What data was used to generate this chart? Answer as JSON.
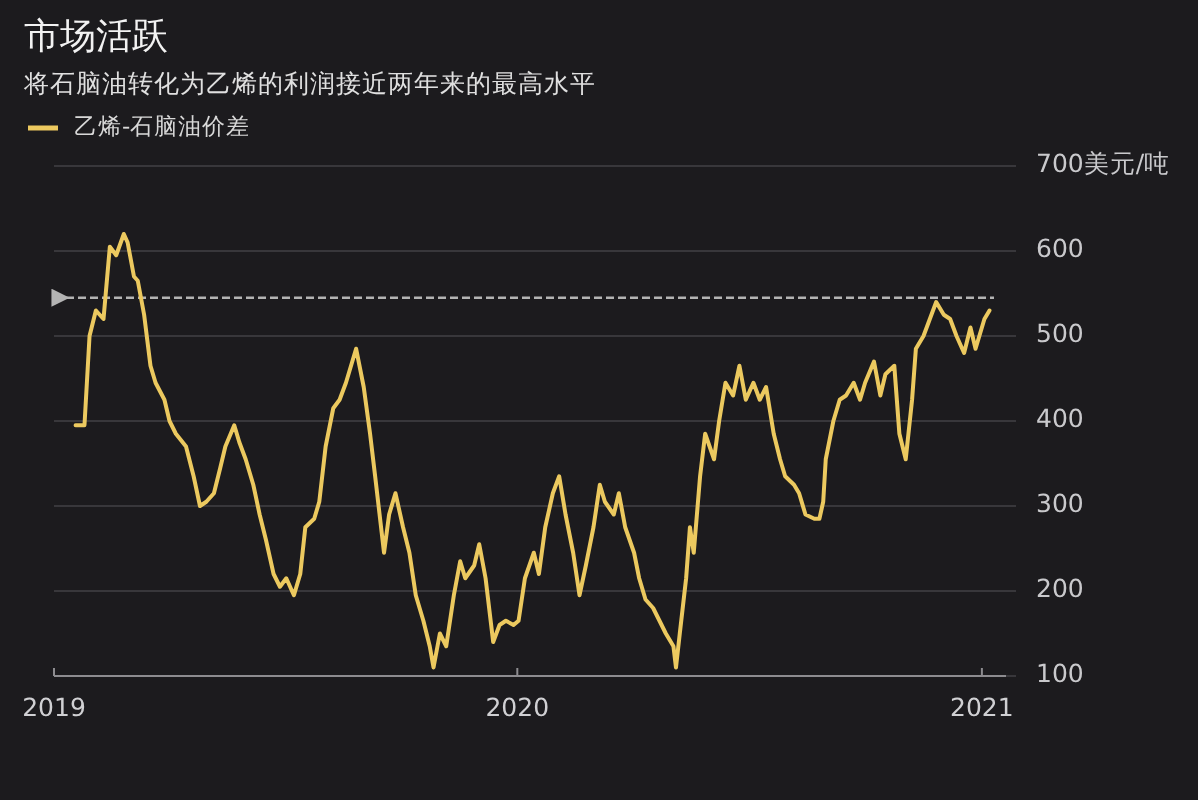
{
  "chart_data": {
    "type": "line",
    "title": "市场活跃",
    "subtitle": "将石脑油转化为乙烯的利润接近两年来的最高水平",
    "x": [
      "2019-01-18",
      "2019-01-25",
      "2019-01-29",
      "2019-02-03",
      "2019-02-09",
      "2019-02-14",
      "2019-02-19",
      "2019-02-25",
      "2019-02-28",
      "2019-03-05",
      "2019-03-08",
      "2019-03-13",
      "2019-03-18",
      "2019-03-22",
      "2019-03-29",
      "2019-04-02",
      "2019-04-07",
      "2019-04-15",
      "2019-04-21",
      "2019-04-26",
      "2019-05-01",
      "2019-05-07",
      "2019-05-12",
      "2019-05-16",
      "2019-05-23",
      "2019-05-27",
      "2019-06-01",
      "2019-06-07",
      "2019-06-12",
      "2019-06-17",
      "2019-06-23",
      "2019-06-28",
      "2019-07-03",
      "2019-07-09",
      "2019-07-14",
      "2019-07-18",
      "2019-07-25",
      "2019-07-29",
      "2019-08-03",
      "2019-08-09",
      "2019-08-14",
      "2019-08-19",
      "2019-08-27",
      "2019-09-02",
      "2019-09-07",
      "2019-09-11",
      "2019-09-18",
      "2019-09-22",
      "2019-09-27",
      "2019-10-03",
      "2019-10-08",
      "2019-10-13",
      "2019-10-19",
      "2019-10-24",
      "2019-10-27",
      "2019-11-01",
      "2019-11-06",
      "2019-11-12",
      "2019-11-17",
      "2019-11-21",
      "2019-11-28",
      "2019-12-02",
      "2019-12-07",
      "2019-12-13",
      "2019-12-18",
      "2019-12-23",
      "2019-12-29",
      "2020-01-02",
      "2020-01-07",
      "2020-01-14",
      "2020-01-18",
      "2020-01-23",
      "2020-01-29",
      "2020-02-03",
      "2020-02-08",
      "2020-02-14",
      "2020-02-19",
      "2020-02-24",
      "2020-03-01",
      "2020-03-06",
      "2020-03-10",
      "2020-03-17",
      "2020-03-21",
      "2020-03-26",
      "2020-04-02",
      "2020-04-06",
      "2020-04-11",
      "2020-04-17",
      "2020-04-22",
      "2020-04-27",
      "2020-05-03",
      "2020-05-05",
      "2020-05-08",
      "2020-05-13",
      "2020-05-16",
      "2020-05-19",
      "2020-05-24",
      "2020-05-28",
      "2020-06-04",
      "2020-06-08",
      "2020-06-13",
      "2020-06-19",
      "2020-06-24",
      "2020-06-29",
      "2020-07-05",
      "2020-07-10",
      "2020-07-15",
      "2020-07-21",
      "2020-07-26",
      "2020-07-30",
      "2020-08-06",
      "2020-08-10",
      "2020-08-15",
      "2020-08-22",
      "2020-08-26",
      "2020-08-29",
      "2020-08-31",
      "2020-09-06",
      "2020-09-11",
      "2020-09-16",
      "2020-09-22",
      "2020-09-27",
      "2020-10-01",
      "2020-10-08",
      "2020-10-13",
      "2020-10-17",
      "2020-10-24",
      "2020-10-28",
      "2020-11-02",
      "2020-11-07",
      "2020-11-10",
      "2020-11-16",
      "2020-11-21",
      "2020-11-26",
      "2020-12-02",
      "2020-12-07",
      "2020-12-12",
      "2020-12-18",
      "2020-12-23",
      "2020-12-27",
      "2021-01-03",
      "2021-01-07"
    ],
    "series": [
      {
        "name": "乙烯-石脑油价差",
        "color": "#ecc95f",
        "values": [
          395,
          395,
          500,
          530,
          520,
          605,
          595,
          620,
          610,
          570,
          565,
          525,
          465,
          445,
          425,
          400,
          385,
          370,
          335,
          300,
          305,
          315,
          345,
          370,
          395,
          375,
          355,
          325,
          290,
          260,
          220,
          205,
          215,
          195,
          220,
          275,
          285,
          305,
          370,
          415,
          425,
          445,
          485,
          440,
          385,
          335,
          245,
          290,
          315,
          275,
          245,
          195,
          165,
          135,
          110,
          150,
          135,
          195,
          235,
          215,
          230,
          255,
          215,
          140,
          160,
          165,
          160,
          165,
          215,
          245,
          220,
          275,
          315,
          335,
          290,
          245,
          195,
          230,
          275,
          325,
          305,
          290,
          315,
          275,
          245,
          215,
          190,
          180,
          165,
          150,
          135,
          110,
          150,
          215,
          275,
          245,
          335,
          385,
          355,
          400,
          445,
          430,
          465,
          425,
          445,
          425,
          440,
          385,
          355,
          335,
          325,
          315,
          290,
          285,
          285,
          305,
          355,
          400,
          425,
          430,
          445,
          425,
          445,
          470,
          430,
          455,
          465,
          385,
          355,
          425,
          485,
          500,
          520,
          540,
          525,
          520,
          500,
          480,
          510,
          485,
          520,
          530
        ]
      }
    ],
    "xlim": [
      "2019-01-01",
      "2021-01-20"
    ],
    "xticks": [
      "2019",
      "2020",
      "2021"
    ],
    "ylim": [
      100,
      700
    ],
    "yticks": [
      100,
      200,
      300,
      400,
      500,
      600,
      {
        "value": 700,
        "label": "700美元/吨"
      }
    ],
    "grid": "y",
    "legend": "top left",
    "ref_lines": [
      {
        "axis": "y",
        "value": 545,
        "color": "#b4b4b4",
        "line_style": "dashed"
      }
    ]
  }
}
